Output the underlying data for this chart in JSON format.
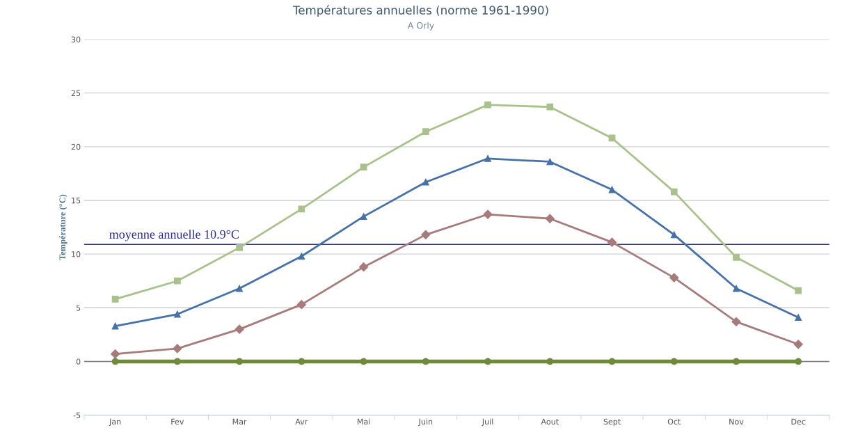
{
  "chart_data": {
    "type": "line",
    "title": "Températures annuelles (norme 1961-1990)",
    "subtitle": "A Orly",
    "ylabel": "Température (°C)",
    "categories": [
      "Jan",
      "Fev",
      "Mar",
      "Avr",
      "Mai",
      "Juin",
      "Juil",
      "Aout",
      "Sept",
      "Oct",
      "Nov",
      "Dec"
    ],
    "series": [
      {
        "color": "#a9c18a",
        "marker": "square",
        "values": [
          5.8,
          7.5,
          10.6,
          14.2,
          18.1,
          21.4,
          23.9,
          23.7,
          20.8,
          15.8,
          9.7,
          6.6
        ]
      },
      {
        "color": "#4672a8",
        "marker": "triangle",
        "values": [
          3.3,
          4.4,
          6.8,
          9.8,
          13.5,
          16.7,
          18.9,
          18.6,
          16.0,
          11.8,
          6.8,
          4.1
        ]
      },
      {
        "color": "#a77b7b",
        "marker": "diamond",
        "values": [
          0.7,
          1.2,
          3.0,
          5.3,
          8.8,
          11.8,
          13.7,
          13.3,
          11.1,
          7.8,
          3.7,
          1.6
        ]
      },
      {
        "color": "#6f8a3c",
        "marker": "circle",
        "values": [
          0,
          0,
          0,
          0,
          0,
          0,
          0,
          0,
          0,
          0,
          0,
          0
        ]
      }
    ],
    "ylim": [
      -5,
      30
    ],
    "yticks": [
      -5,
      0,
      5,
      10,
      15,
      20,
      25,
      30
    ],
    "grid": "y",
    "line_style": "solid",
    "ref_lines": [
      {
        "axis": "y",
        "value": 10.9,
        "label": "moyenne annuelle 10.9°C",
        "color": "#2b2b9a"
      }
    ]
  }
}
